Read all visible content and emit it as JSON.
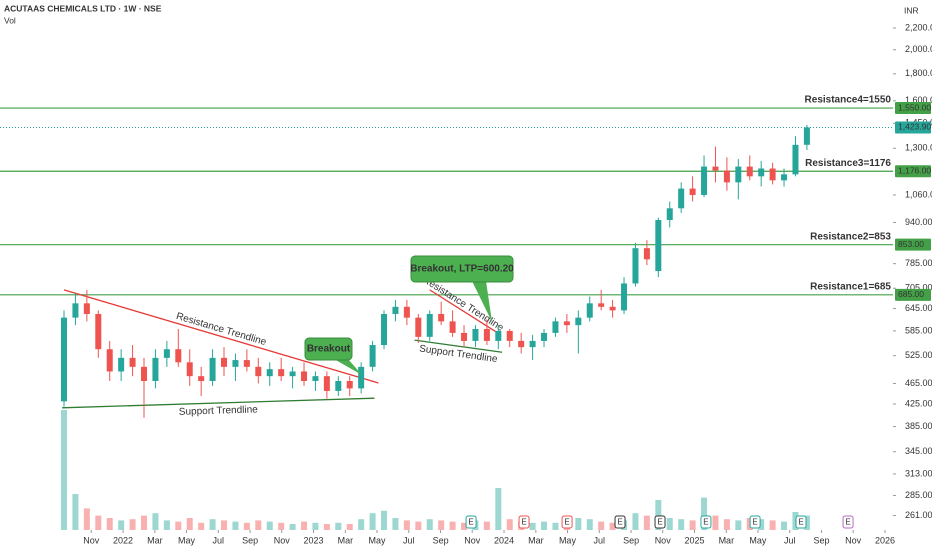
{
  "chart_data": {
    "type": "candlestick",
    "title": "ACUTAAS CHEMICALS LTD · 1W · NSE",
    "volume_label": "Vol",
    "currency": "INR",
    "log_scale": true,
    "up_color": "#26a69a",
    "down_color": "#ef5350",
    "x": [
      2021.69,
      2021.75,
      2021.81,
      2021.87,
      2021.93,
      2021.99,
      2022.05,
      2022.11,
      2022.17,
      2022.23,
      2022.29,
      2022.35,
      2022.41,
      2022.47,
      2022.53,
      2022.59,
      2022.65,
      2022.71,
      2022.77,
      2022.83,
      2022.89,
      2022.95,
      2023.01,
      2023.07,
      2023.13,
      2023.19,
      2023.25,
      2023.31,
      2023.37,
      2023.43,
      2023.49,
      2023.55,
      2023.61,
      2023.67,
      2023.73,
      2023.79,
      2023.85,
      2023.91,
      2023.97,
      2024.03,
      2024.09,
      2024.15,
      2024.21,
      2024.27,
      2024.33,
      2024.39,
      2024.45,
      2024.51,
      2024.57,
      2024.63,
      2024.69,
      2024.75,
      2024.81,
      2024.87,
      2024.93,
      2024.99,
      2025.05,
      2025.11,
      2025.17,
      2025.23,
      2025.29,
      2025.35,
      2025.41,
      2025.47,
      2025.53,
      2025.59
    ],
    "open": [
      430,
      620,
      660,
      630,
      540,
      490,
      520,
      500,
      470,
      520,
      540,
      510,
      480,
      470,
      520,
      500,
      515,
      500,
      480,
      495,
      480,
      490,
      470,
      480,
      450,
      470,
      455,
      500,
      550,
      630,
      650,
      620,
      570,
      630,
      610,
      580,
      560,
      590,
      560,
      585,
      560,
      545,
      560,
      580,
      610,
      600,
      620,
      660,
      650,
      640,
      720,
      840,
      760,
      950,
      1000,
      1090,
      1060,
      1200,
      1180,
      1120,
      1200,
      1150,
      1190,
      1130,
      1160,
      1320
    ],
    "high": [
      640,
      690,
      700,
      640,
      560,
      540,
      550,
      520,
      540,
      560,
      590,
      540,
      500,
      540,
      545,
      530,
      540,
      520,
      510,
      520,
      500,
      510,
      490,
      490,
      480,
      480,
      510,
      560,
      640,
      670,
      670,
      630,
      640,
      665,
      640,
      600,
      600,
      615,
      600,
      590,
      580,
      575,
      590,
      620,
      630,
      640,
      680,
      700,
      670,
      740,
      860,
      870,
      960,
      1030,
      1120,
      1150,
      1260,
      1310,
      1250,
      1240,
      1260,
      1230,
      1220,
      1190,
      1370,
      1440
    ],
    "low": [
      420,
      600,
      610,
      520,
      470,
      470,
      480,
      400,
      455,
      500,
      500,
      460,
      440,
      460,
      480,
      470,
      490,
      465,
      460,
      470,
      455,
      460,
      450,
      435,
      440,
      440,
      445,
      490,
      540,
      610,
      600,
      555,
      560,
      600,
      570,
      545,
      545,
      550,
      540,
      545,
      530,
      515,
      545,
      570,
      580,
      530,
      610,
      640,
      620,
      630,
      710,
      780,
      740,
      920,
      980,
      1030,
      1050,
      1120,
      1080,
      1040,
      1130,
      1100,
      1110,
      1100,
      1150,
      1290
    ],
    "close": [
      620,
      660,
      630,
      540,
      490,
      520,
      500,
      470,
      520,
      540,
      510,
      480,
      470,
      520,
      500,
      515,
      500,
      480,
      495,
      480,
      490,
      470,
      480,
      450,
      470,
      455,
      500,
      550,
      630,
      650,
      620,
      570,
      630,
      610,
      580,
      560,
      590,
      560,
      585,
      560,
      545,
      560,
      580,
      610,
      600,
      620,
      660,
      650,
      640,
      720,
      840,
      800,
      950,
      1000,
      1090,
      1060,
      1200,
      1180,
      1120,
      1200,
      1150,
      1190,
      1130,
      1160,
      1320,
      1423.9
    ],
    "volume": [
      100,
      30,
      18,
      12,
      10,
      8,
      9,
      12,
      14,
      8,
      7,
      10,
      6,
      9,
      8,
      7,
      6,
      8,
      7,
      6,
      5,
      7,
      6,
      5,
      6,
      5,
      9,
      14,
      16,
      10,
      8,
      7,
      9,
      8,
      7,
      6,
      8,
      7,
      35,
      9,
      7,
      6,
      7,
      6,
      8,
      10,
      9,
      7,
      6,
      8,
      14,
      12,
      25,
      10,
      9,
      8,
      27,
      12,
      9,
      8,
      10,
      9,
      8,
      7,
      15,
      12
    ],
    "volume_lim": [
      0,
      100
    ],
    "xlim": [
      2021.354,
      2026.042
    ],
    "ylim": [
      245,
      2486
    ],
    "xticks": [
      {
        "value": 2021.833,
        "label": "Nov"
      },
      {
        "value": 2022,
        "label": "2022"
      },
      {
        "value": 2022.167,
        "label": "Mar"
      },
      {
        "value": 2022.333,
        "label": "May"
      },
      {
        "value": 2022.5,
        "label": "Jul"
      },
      {
        "value": 2022.667,
        "label": "Sep"
      },
      {
        "value": 2022.833,
        "label": "Nov"
      },
      {
        "value": 2023,
        "label": "2023"
      },
      {
        "value": 2023.167,
        "label": "Mar"
      },
      {
        "value": 2023.333,
        "label": "May"
      },
      {
        "value": 2023.5,
        "label": "Jul"
      },
      {
        "value": 2023.667,
        "label": "Sep"
      },
      {
        "value": 2023.833,
        "label": "Nov"
      },
      {
        "value": 2024,
        "label": "2024"
      },
      {
        "value": 2024.167,
        "label": "Mar"
      },
      {
        "value": 2024.333,
        "label": "May"
      },
      {
        "value": 2024.5,
        "label": "Jul"
      },
      {
        "value": 2024.667,
        "label": "Sep"
      },
      {
        "value": 2024.833,
        "label": "Nov"
      },
      {
        "value": 2025,
        "label": "2025"
      },
      {
        "value": 2025.167,
        "label": "Mar"
      },
      {
        "value": 2025.333,
        "label": "May"
      },
      {
        "value": 2025.5,
        "label": "Jul"
      },
      {
        "value": 2025.667,
        "label": "Sep"
      },
      {
        "value": 2025.833,
        "label": "Nov"
      },
      {
        "value": 2026,
        "label": "2026"
      }
    ],
    "yticks": [
      {
        "value": 2200,
        "label": "2,200.00"
      },
      {
        "value": 2000,
        "label": "2,000.00"
      },
      {
        "value": 1800,
        "label": "1,800.00"
      },
      {
        "value": 1600,
        "label": "1,600.00"
      },
      {
        "value": 1450,
        "label": "1,450.00"
      },
      {
        "value": 1300,
        "label": "1,300.00"
      },
      {
        "value": 1060,
        "label": "1,060.00"
      },
      {
        "value": 940,
        "label": "940.00"
      },
      {
        "value": 785,
        "label": "785.00"
      },
      {
        "value": 705,
        "label": "705.00"
      },
      {
        "value": 645,
        "label": "645.00"
      },
      {
        "value": 585,
        "label": "585.00"
      },
      {
        "value": 525,
        "label": "525.00"
      },
      {
        "value": 465,
        "label": "465.00"
      },
      {
        "value": 425,
        "label": "425.00"
      },
      {
        "value": 385,
        "label": "385.00"
      },
      {
        "value": 345,
        "label": "345.00"
      },
      {
        "value": 313,
        "label": "313.00"
      },
      {
        "value": 285,
        "label": "285.00"
      },
      {
        "value": 261,
        "label": "261.00"
      }
    ],
    "levels": [
      {
        "name": "Resistance4=1550",
        "value": 1550,
        "label": "1,550.00",
        "color": "#43a047"
      },
      {
        "name": "Resistance3=1176",
        "value": 1176,
        "label": "1,176.00",
        "color": "#43a047"
      },
      {
        "name": "Resistance2=853",
        "value": 853,
        "label": "853.00",
        "color": "#43a047"
      },
      {
        "name": "Resistance1=685",
        "value": 685,
        "label": "685.00",
        "color": "#43a047"
      }
    ],
    "last_price": {
      "value": 1423.9,
      "label": "1,423.90",
      "color": "#26a69a"
    },
    "trendlines": [
      {
        "name": "Resistance Trendline",
        "x": [
          2021.69,
          2023.34
        ],
        "y": [
          700,
          466
        ],
        "color": "#e53935"
      },
      {
        "name": "Support Trendline",
        "x": [
          2021.68,
          2023.32
        ],
        "y": [
          418,
          436
        ],
        "color": "#2e7d32"
      },
      {
        "name": "Resistance Trendline",
        "x": [
          2023.61,
          2023.96
        ],
        "y": [
          700,
          582
        ],
        "color": "#e53935"
      },
      {
        "name": "Support Trendline",
        "x": [
          2023.53,
          2023.99
        ],
        "y": [
          562,
          533
        ],
        "color": "#2e7d32"
      }
    ],
    "callouts": [
      {
        "text": "Breakout"
      },
      {
        "text": "Breakout, LTP=600.20"
      }
    ],
    "events": [
      {
        "x": 2023.827,
        "label": "E",
        "color": "#26a69a"
      },
      {
        "x": 2024.105,
        "label": "E",
        "color": "#ef5350"
      },
      {
        "x": 2024.331,
        "label": "E",
        "color": "#ef5350"
      },
      {
        "x": 2024.609,
        "label": "E",
        "color": "#333333"
      },
      {
        "x": 2024.819,
        "label": "E",
        "color": "#333333"
      },
      {
        "x": 2025.06,
        "label": "E",
        "color": "#26a69a"
      },
      {
        "x": 2025.318,
        "label": "E",
        "color": "#26a69a"
      },
      {
        "x": 2025.559,
        "label": "E",
        "color": "#26a69a"
      },
      {
        "x": 2025.806,
        "label": "E",
        "color": "#ba68c8"
      }
    ]
  }
}
